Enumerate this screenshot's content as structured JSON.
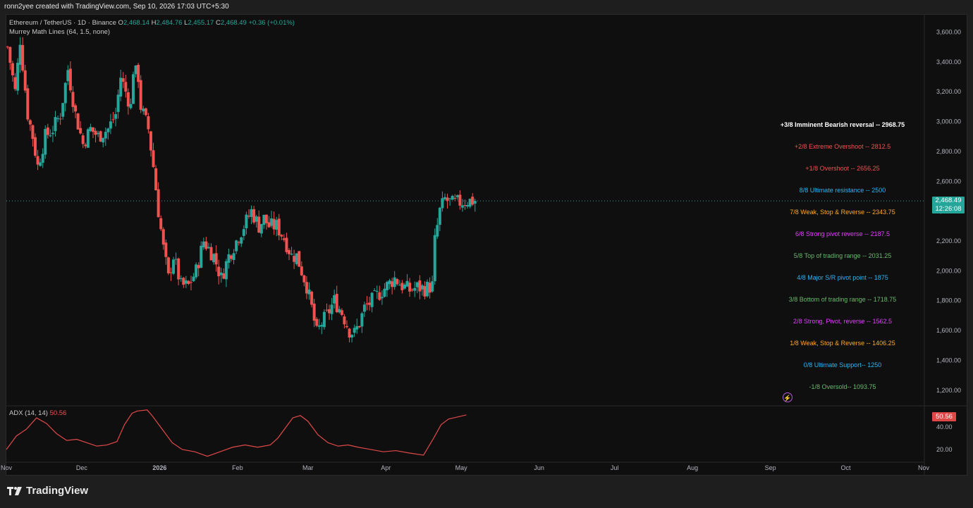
{
  "header": {
    "credit": "ronn2yee created with TradingView.com, Sep 10, 2026 17:03 UTC+5:30"
  },
  "legend": {
    "symbol": "Ethereum / TetherUS · 1D · Binance",
    "o_label": "O",
    "o_value": "2,468.14",
    "h_label": "H",
    "h_value": "2,484.76",
    "l_label": "L",
    "l_value": "2,455.17",
    "c_label": "C",
    "c_value": "2,468.49 +0.36 (+0.01%)",
    "indicator": "Murrey Math Lines (64, 1.5, none)"
  },
  "adx": {
    "label": "ADX (14, 14)",
    "value": "50.56",
    "tag": "50.56"
  },
  "last_price": {
    "price": "2,468.49",
    "countdown": "12:26:08"
  },
  "branding": {
    "name": "TradingView"
  },
  "colors": {
    "up": "#26a69a",
    "down": "#ef5350",
    "adx_line": "#e04848",
    "background": "#0f0f0f"
  },
  "chart_data": [
    {
      "type": "candlestick",
      "title": "Ethereum / TetherUS · 1D · Binance",
      "y_axis_side": "right",
      "ylim": [
        1100,
        3720
      ],
      "y_ticks": [
        "3,600.00",
        "3,400.00",
        "3,200.00",
        "3,000.00",
        "2,800.00",
        "2,600.00",
        "2,400.00",
        "2,200.00",
        "2,000.00",
        "1,800.00",
        "1,600.00",
        "1,400.00",
        "1,200.00"
      ],
      "x_ticks": [
        "Nov",
        "Dec",
        "2026",
        "Feb",
        "Mar",
        "Apr",
        "May",
        "Jun",
        "Jul",
        "Aug",
        "Sep",
        "Oct",
        "Nov"
      ],
      "x_tick_days": [
        0,
        30,
        61,
        92,
        120,
        151,
        181,
        212,
        242,
        273,
        304,
        334,
        365
      ],
      "price_anchors": [
        [
          0,
          3500
        ],
        [
          3,
          3200
        ],
        [
          5,
          3550
        ],
        [
          8,
          3050
        ],
        [
          10,
          2900
        ],
        [
          12,
          2700
        ],
        [
          15,
          2900
        ],
        [
          18,
          2950
        ],
        [
          21,
          3050
        ],
        [
          24,
          3350
        ],
        [
          27,
          3050
        ],
        [
          30,
          2850
        ],
        [
          33,
          2950
        ],
        [
          36,
          2900
        ],
        [
          40,
          2950
        ],
        [
          43,
          3050
        ],
        [
          45,
          3300
        ],
        [
          47,
          3200
        ],
        [
          49,
          3100
        ],
        [
          50,
          3350
        ],
        [
          52,
          3300
        ],
        [
          53,
          3100
        ],
        [
          56,
          2950
        ],
        [
          58,
          2700
        ],
        [
          60,
          2400
        ],
        [
          62,
          2150
        ],
        [
          64,
          1950
        ],
        [
          66,
          2100
        ],
        [
          69,
          1900
        ],
        [
          72,
          1900
        ],
        [
          75,
          2000
        ],
        [
          78,
          2200
        ],
        [
          80,
          2150
        ],
        [
          82,
          2100
        ],
        [
          85,
          1950
        ],
        [
          88,
          2100
        ],
        [
          91,
          2200
        ],
        [
          94,
          2300
        ],
        [
          97,
          2400
        ],
        [
          100,
          2300
        ],
        [
          102,
          2350
        ],
        [
          104,
          2300
        ],
        [
          107,
          2300
        ],
        [
          110,
          2220
        ],
        [
          113,
          2100
        ],
        [
          115,
          2100
        ],
        [
          117,
          2000
        ],
        [
          119,
          1900
        ],
        [
          121,
          1750
        ],
        [
          123,
          1580
        ],
        [
          125,
          1650
        ],
        [
          127,
          1700
        ],
        [
          130,
          1800
        ],
        [
          133,
          1720
        ],
        [
          136,
          1600
        ],
        [
          138,
          1580
        ],
        [
          140,
          1650
        ],
        [
          142,
          1750
        ],
        [
          145,
          1800
        ],
        [
          148,
          1850
        ],
        [
          151,
          1900
        ],
        [
          154,
          1950
        ],
        [
          157,
          1900
        ],
        [
          160,
          1870
        ],
        [
          163,
          1890
        ],
        [
          166,
          1880
        ],
        [
          169,
          1900
        ],
        [
          170,
          2200
        ],
        [
          172,
          2400
        ],
        [
          174,
          2480
        ],
        [
          177,
          2450
        ],
        [
          180,
          2460
        ],
        [
          183,
          2470
        ],
        [
          186,
          2468
        ]
      ],
      "candles_count": 187,
      "last_close": 2468.49,
      "murrey_levels": [
        {
          "label": "+3/8 Imminent Bearish reversal -- 2968.75",
          "value": 2968.75,
          "color": "#ffffff"
        },
        {
          "label": "+2/8 Extreme Overshoot -- 2812.5",
          "value": 2812.5,
          "color": "#ef5350"
        },
        {
          "label": "+1/8 Overshoot -- 2656.25",
          "value": 2656.25,
          "color": "#ef5350"
        },
        {
          "label": "8/8 Ultimate resistance -- 2500",
          "value": 2500,
          "color": "#29b6f6"
        },
        {
          "label": "7/8 Weak, Stop & Reverse -- 2343.75",
          "value": 2343.75,
          "color": "#ffa726"
        },
        {
          "label": "6/8 Strong pivot reverse -- 2187.5",
          "value": 2187.5,
          "color": "#e040fb"
        },
        {
          "label": "5/8 Top of trading range -- 2031.25",
          "value": 2031.25,
          "color": "#66bb6a"
        },
        {
          "label": "4/8 Major S/R pivot point -- 1875",
          "value": 1875,
          "color": "#29b6f6"
        },
        {
          "label": "3/8 Bottom of trading range -- 1718.75",
          "value": 1718.75,
          "color": "#66bb6a"
        },
        {
          "label": "2/8 Strong, Pivot, reverse -- 1562.5",
          "value": 1562.5,
          "color": "#e040fb"
        },
        {
          "label": "1/8 Weak, Stop & Reverse -- 1406.25",
          "value": 1406.25,
          "color": "#ffa726"
        },
        {
          "label": "0/8 Ultimate Support-- 1250",
          "value": 1250,
          "color": "#29b6f6"
        },
        {
          "label": "-1/8 Oversold-- 1093.75",
          "value": 1093.75,
          "color": "#66bb6a"
        }
      ]
    },
    {
      "type": "line",
      "title": "ADX (14, 14)",
      "ylim": [
        10,
        58
      ],
      "y_ticks": [
        "40.00",
        "20.00"
      ],
      "series": [
        {
          "name": "ADX (14, 14)",
          "points": [
            [
              0,
              20
            ],
            [
              4,
              32
            ],
            [
              8,
              38
            ],
            [
              12,
              48
            ],
            [
              16,
              43
            ],
            [
              20,
              34
            ],
            [
              24,
              28
            ],
            [
              28,
              29
            ],
            [
              32,
              26
            ],
            [
              36,
              23
            ],
            [
              40,
              24
            ],
            [
              44,
              27
            ],
            [
              47,
              42
            ],
            [
              50,
              52
            ],
            [
              52,
              54
            ],
            [
              56,
              55
            ],
            [
              58,
              50
            ],
            [
              62,
              38
            ],
            [
              66,
              26
            ],
            [
              70,
              20
            ],
            [
              75,
              18
            ],
            [
              80,
              14
            ],
            [
              85,
              18
            ],
            [
              90,
              22
            ],
            [
              95,
              24
            ],
            [
              100,
              22
            ],
            [
              105,
              24
            ],
            [
              108,
              30
            ],
            [
              112,
              42
            ],
            [
              114,
              48
            ],
            [
              117,
              50
            ],
            [
              120,
              45
            ],
            [
              124,
              33
            ],
            [
              128,
              26
            ],
            [
              132,
              23
            ],
            [
              136,
              24
            ],
            [
              140,
              22
            ],
            [
              145,
              20
            ],
            [
              150,
              18
            ],
            [
              155,
              19
            ],
            [
              160,
              17
            ],
            [
              166,
              15
            ],
            [
              170,
              30
            ],
            [
              173,
              42
            ],
            [
              176,
              47
            ],
            [
              180,
              49
            ],
            [
              183,
              50.56
            ]
          ]
        }
      ]
    }
  ]
}
